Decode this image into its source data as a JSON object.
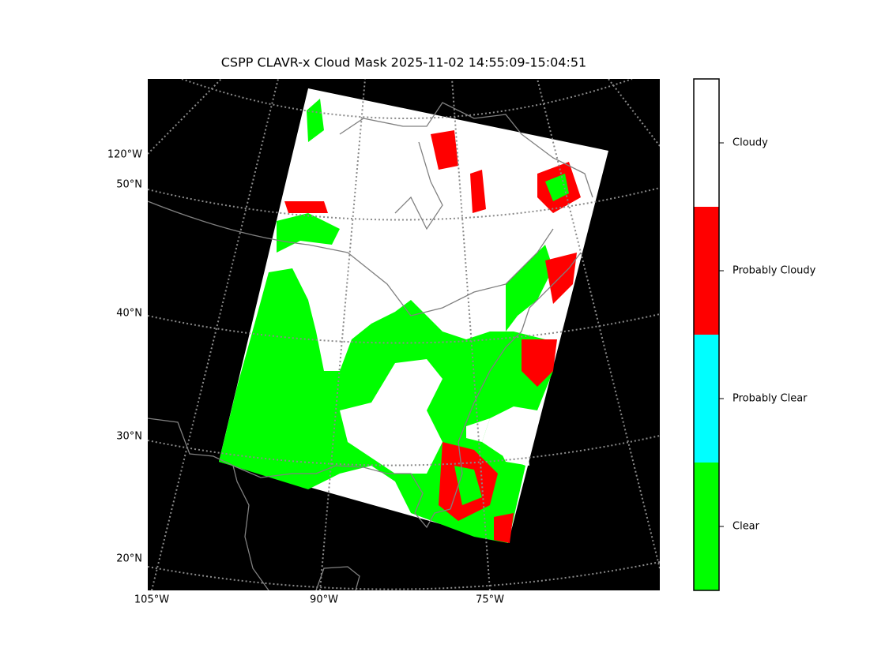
{
  "title": "CSPP CLAVR-x Cloud Mask 2025-11-02 14:55:09-15:04:51",
  "map": {
    "lon_labels": [
      "105°W",
      "90°W",
      "75°W",
      "120°W"
    ],
    "lat_labels": [
      "50°N",
      "40°N",
      "30°N",
      "20°N"
    ]
  },
  "colorbar": {
    "classes": [
      {
        "name": "Clear",
        "color": "#00ff00"
      },
      {
        "name": "Probably Clear",
        "color": "#00ffff"
      },
      {
        "name": "Probably Cloudy",
        "color": "#ff0000"
      },
      {
        "name": "Cloudy",
        "color": "#ffffff"
      }
    ]
  }
}
